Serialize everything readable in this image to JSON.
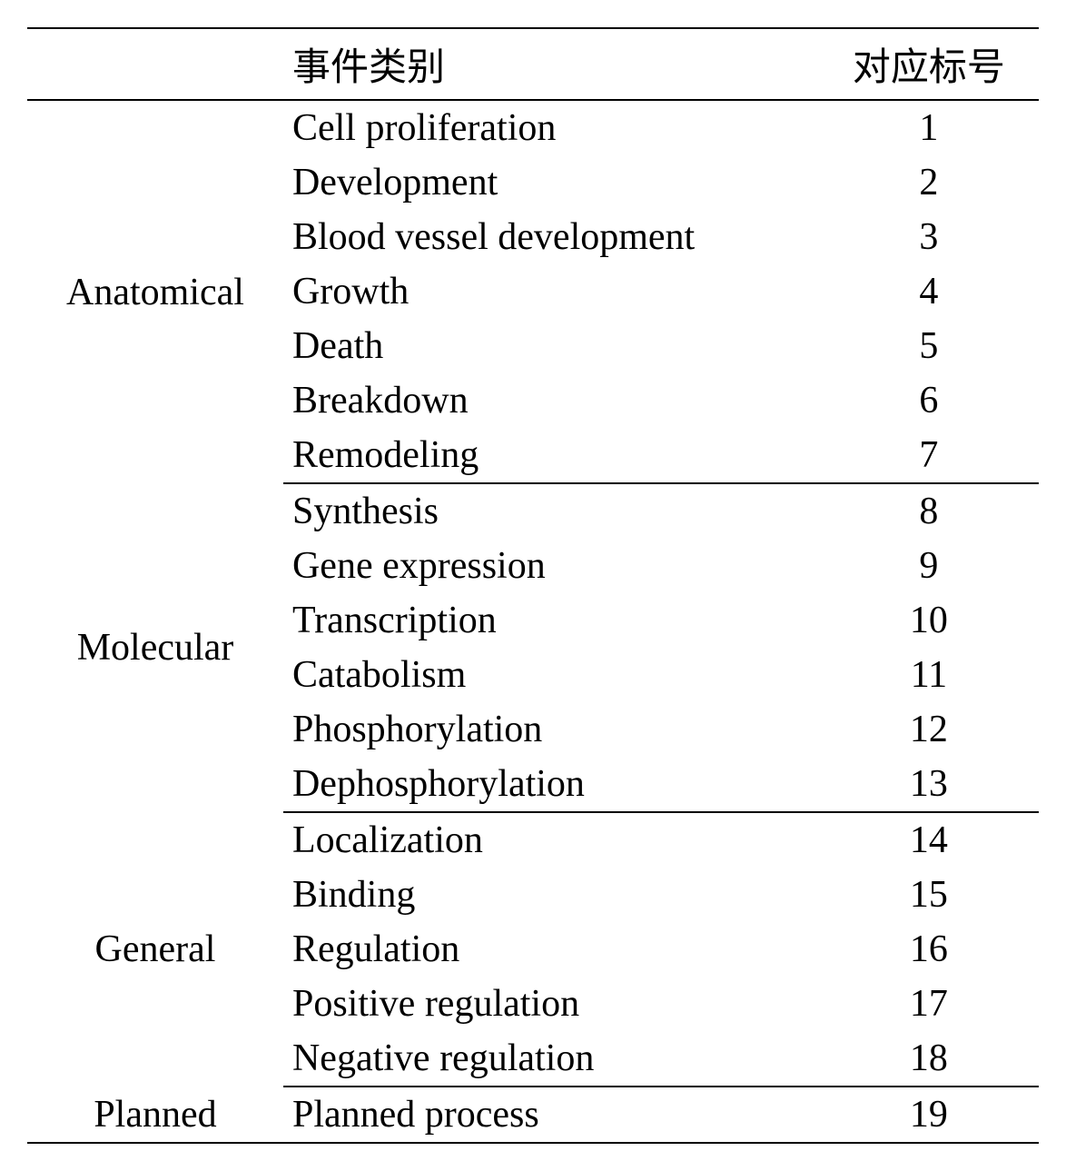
{
  "table": {
    "type": "table",
    "headers": {
      "category": "",
      "event": "事件类别",
      "label": "对应标号"
    },
    "columns": {
      "widths": [
        270,
        600,
        244
      ],
      "alignments": [
        "center",
        "left",
        "center"
      ]
    },
    "font_size": 42,
    "border_color": "#000000",
    "border_width": 2,
    "background_color": "#ffffff",
    "text_color": "#000000",
    "sections": [
      {
        "category": "Anatomical",
        "rows": [
          {
            "event": "Cell proliferation",
            "label": "1"
          },
          {
            "event": "Development",
            "label": "2"
          },
          {
            "event": "Blood vessel development",
            "label": "3"
          },
          {
            "event": "Growth",
            "label": "4"
          },
          {
            "event": "Death",
            "label": "5"
          },
          {
            "event": "Breakdown",
            "label": "6"
          },
          {
            "event": "Remodeling",
            "label": "7"
          }
        ]
      },
      {
        "category": "Molecular",
        "rows": [
          {
            "event": "Synthesis",
            "label": "8"
          },
          {
            "event": "Gene expression",
            "label": "9"
          },
          {
            "event": "Transcription",
            "label": "10"
          },
          {
            "event": "Catabolism",
            "label": "11"
          },
          {
            "event": "Phosphorylation",
            "label": "12"
          },
          {
            "event": "Dephosphorylation",
            "label": "13"
          }
        ]
      },
      {
        "category": "General",
        "rows": [
          {
            "event": "Localization",
            "label": "14"
          },
          {
            "event": "Binding",
            "label": "15"
          },
          {
            "event": "Regulation",
            "label": "16"
          },
          {
            "event": "Positive regulation",
            "label": "17"
          },
          {
            "event": "Negative regulation",
            "label": "18"
          }
        ]
      },
      {
        "category": "Planned",
        "rows": [
          {
            "event": "Planned process",
            "label": "19"
          }
        ]
      }
    ]
  }
}
